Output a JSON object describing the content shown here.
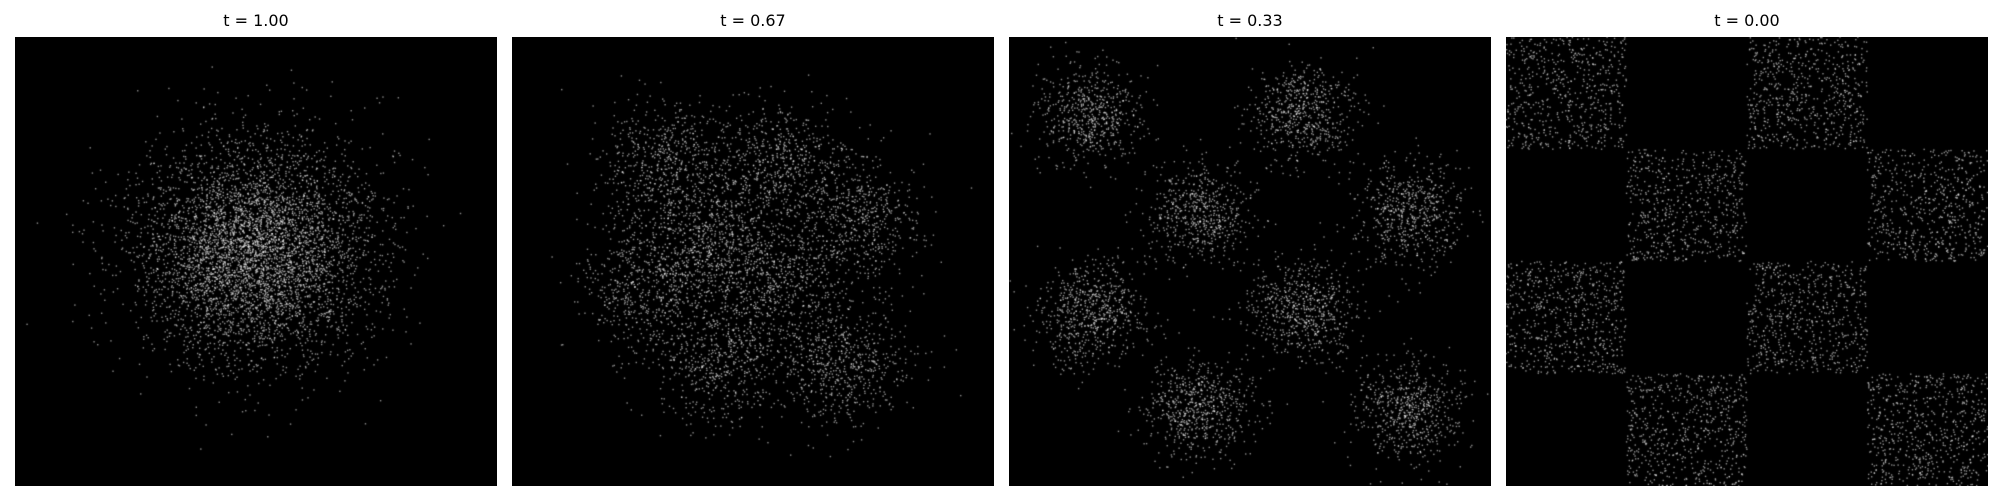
{
  "figure": {
    "panel_background": "#000000",
    "point_color": "#ffffff",
    "point_opacity": 0.55
  },
  "panels": [
    {
      "title": "t = 1.00"
    },
    {
      "title": "t = 0.67"
    },
    {
      "title": "t = 0.33"
    },
    {
      "title": "t = 0.00"
    }
  ],
  "chart_data": [
    {
      "type": "scatter",
      "title": "t = 1.00",
      "xlabel": "",
      "ylabel": "",
      "xlim": [
        -4.5,
        4.5
      ],
      "ylim": [
        -4.5,
        4.5
      ],
      "grid": false,
      "axes_visible": false,
      "point_count": 5000,
      "distribution": "single centered isotropic gaussian",
      "clusters": [
        {
          "x": 0.0,
          "y": 0.2,
          "std": 1.1
        }
      ]
    },
    {
      "type": "scatter",
      "title": "t = 0.67",
      "xlabel": "",
      "ylabel": "",
      "xlim": [
        -4.5,
        4.5
      ],
      "ylim": [
        -4.5,
        4.5
      ],
      "grid": false,
      "axes_visible": false,
      "point_count": 5000,
      "distribution": "eight partially separated blobs",
      "clusters": [
        {
          "x": -1.65,
          "y": 1.95,
          "std": 0.62
        },
        {
          "x": 0.55,
          "y": 2.0,
          "std": 0.62
        },
        {
          "x": -0.8,
          "y": 0.5,
          "std": 0.62
        },
        {
          "x": 1.9,
          "y": 0.75,
          "std": 0.62
        },
        {
          "x": -1.95,
          "y": -0.6,
          "std": 0.62
        },
        {
          "x": 0.3,
          "y": -0.45,
          "std": 0.62
        },
        {
          "x": -0.55,
          "y": -2.0,
          "std": 0.62
        },
        {
          "x": 1.65,
          "y": -2.05,
          "std": 0.62
        }
      ]
    },
    {
      "type": "scatter",
      "title": "t = 0.33",
      "xlabel": "",
      "ylabel": "",
      "xlim": [
        -4.5,
        4.5
      ],
      "ylim": [
        -4.5,
        4.5
      ],
      "grid": false,
      "axes_visible": false,
      "point_count": 5000,
      "distribution": "eight clearly separated blobs in a checkerboard arrangement",
      "clusters": [
        {
          "x": -3.0,
          "y": 2.95,
          "std": 0.5
        },
        {
          "x": 1.0,
          "y": 3.0,
          "std": 0.5
        },
        {
          "x": -0.9,
          "y": 0.95,
          "std": 0.5
        },
        {
          "x": 3.0,
          "y": 1.0,
          "std": 0.5
        },
        {
          "x": -2.95,
          "y": -1.0,
          "std": 0.5
        },
        {
          "x": 1.0,
          "y": -1.0,
          "std": 0.5
        },
        {
          "x": -0.95,
          "y": -2.95,
          "std": 0.5
        },
        {
          "x": 3.0,
          "y": -3.0,
          "std": 0.5
        }
      ]
    },
    {
      "type": "scatter",
      "title": "t = 0.00",
      "xlabel": "",
      "ylabel": "",
      "xlim": [
        -4.0,
        4.0
      ],
      "ylim": [
        -4.0,
        4.0
      ],
      "grid": false,
      "axes_visible": false,
      "point_count": 5000,
      "distribution": "eight uniform squares forming a checkerboard",
      "squares": [
        {
          "x": [
            -4,
            -2
          ],
          "y": [
            2,
            4
          ]
        },
        {
          "x": [
            0,
            2
          ],
          "y": [
            2,
            4
          ]
        },
        {
          "x": [
            -2,
            0
          ],
          "y": [
            0,
            2
          ]
        },
        {
          "x": [
            2,
            4
          ],
          "y": [
            0,
            2
          ]
        },
        {
          "x": [
            -4,
            -2
          ],
          "y": [
            -2,
            0
          ]
        },
        {
          "x": [
            0,
            2
          ],
          "y": [
            -2,
            0
          ]
        },
        {
          "x": [
            -2,
            0
          ],
          "y": [
            -4,
            -2
          ]
        },
        {
          "x": [
            2,
            4
          ],
          "y": [
            -4,
            -2
          ]
        }
      ]
    }
  ]
}
